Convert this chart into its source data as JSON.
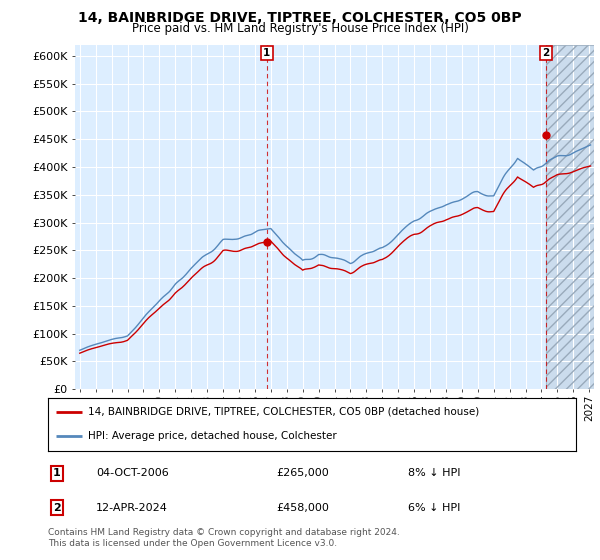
{
  "title": "14, BAINBRIDGE DRIVE, TIPTREE, COLCHESTER, CO5 0BP",
  "subtitle": "Price paid vs. HM Land Registry's House Price Index (HPI)",
  "legend_line1": "14, BAINBRIDGE DRIVE, TIPTREE, COLCHESTER, CO5 0BP (detached house)",
  "legend_line2": "HPI: Average price, detached house, Colchester",
  "annotation1_date": "04-OCT-2006",
  "annotation1_price": "£265,000",
  "annotation1_hpi": "8% ↓ HPI",
  "annotation2_date": "12-APR-2024",
  "annotation2_price": "£458,000",
  "annotation2_hpi": "6% ↓ HPI",
  "footer": "Contains HM Land Registry data © Crown copyright and database right 2024.\nThis data is licensed under the Open Government Licence v3.0.",
  "hpi_color": "#5588bb",
  "price_color": "#cc0000",
  "annotation_color": "#cc0000",
  "background_color": "#ffffff",
  "chart_bg_color": "#ddeeff",
  "grid_color": "#ffffff",
  "hatch_color": "#bbccdd",
  "ylim": [
    0,
    620000
  ],
  "yticks": [
    0,
    50000,
    100000,
    150000,
    200000,
    250000,
    300000,
    350000,
    400000,
    450000,
    500000,
    550000,
    600000
  ],
  "sale1_x": 2006.75,
  "sale1_y": 265000,
  "sale2_x": 2024.28,
  "sale2_y": 458000,
  "xmin": 1994.7,
  "xmax": 2027.3
}
